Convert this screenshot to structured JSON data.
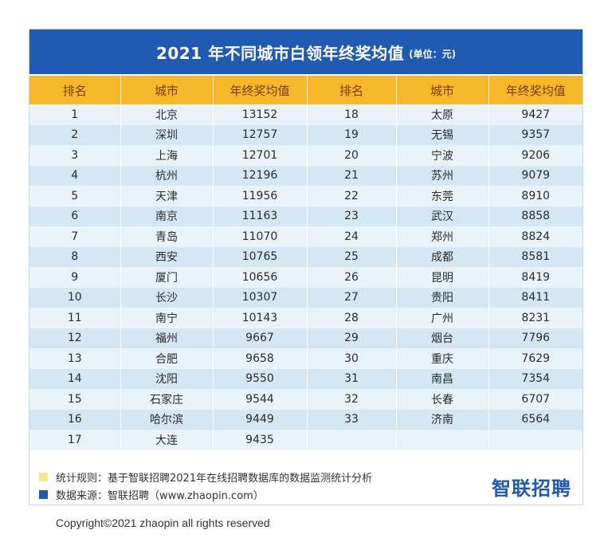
{
  "header": {
    "title": "2021 年不同城市白领年终奖均值",
    "unit": "(单位：元)"
  },
  "colors": {
    "title_bg": "#1f5bb2",
    "header_bg": "#f6b72b",
    "row_light": "#e9f3fa",
    "row_dark": "#d3e7f4",
    "note_yellow": "#f9e38b",
    "note_blue": "#1f5bb2"
  },
  "chart_data": {
    "type": "table",
    "title": "2021 年不同城市白领年终奖均值",
    "unit": "(单位：元)",
    "columns": [
      "排名",
      "城市",
      "年终奖均值",
      "排名",
      "城市",
      "年终奖均值"
    ],
    "rows": [
      [
        "1",
        "北京",
        "13152",
        "18",
        "太原",
        "9427"
      ],
      [
        "2",
        "深圳",
        "12757",
        "19",
        "无锡",
        "9357"
      ],
      [
        "3",
        "上海",
        "12701",
        "20",
        "宁波",
        "9206"
      ],
      [
        "4",
        "杭州",
        "12196",
        "21",
        "苏州",
        "9079"
      ],
      [
        "5",
        "天津",
        "11956",
        "22",
        "东莞",
        "8910"
      ],
      [
        "6",
        "南京",
        "11163",
        "23",
        "武汉",
        "8858"
      ],
      [
        "7",
        "青岛",
        "11070",
        "24",
        "郑州",
        "8824"
      ],
      [
        "8",
        "西安",
        "10765",
        "25",
        "成都",
        "8581"
      ],
      [
        "9",
        "厦门",
        "10656",
        "26",
        "昆明",
        "8419"
      ],
      [
        "10",
        "长沙",
        "10307",
        "27",
        "贵阳",
        "8411"
      ],
      [
        "11",
        "南宁",
        "10143",
        "28",
        "广州",
        "8231"
      ],
      [
        "12",
        "福州",
        "9667",
        "29",
        "烟台",
        "7796"
      ],
      [
        "13",
        "合肥",
        "9658",
        "30",
        "重庆",
        "7629"
      ],
      [
        "14",
        "沈阳",
        "9550",
        "31",
        "南昌",
        "7354"
      ],
      [
        "15",
        "石家庄",
        "9544",
        "32",
        "长春",
        "6707"
      ],
      [
        "16",
        "哈尔滨",
        "9449",
        "33",
        "济南",
        "6564"
      ],
      [
        "17",
        "大连",
        "9435",
        "",
        "",
        ""
      ]
    ]
  },
  "notes": [
    {
      "text": "统计规则：基于智联招聘2021年在线招聘数据库的数据监测统计分析",
      "color": "#f9e38b"
    },
    {
      "text": "数据来源：智联招聘（www.zhaopin.com）",
      "color": "#1f5bb2"
    }
  ],
  "brand": "智联招聘",
  "copyright": "Copyright©2021 zhaopin all rights reserved"
}
